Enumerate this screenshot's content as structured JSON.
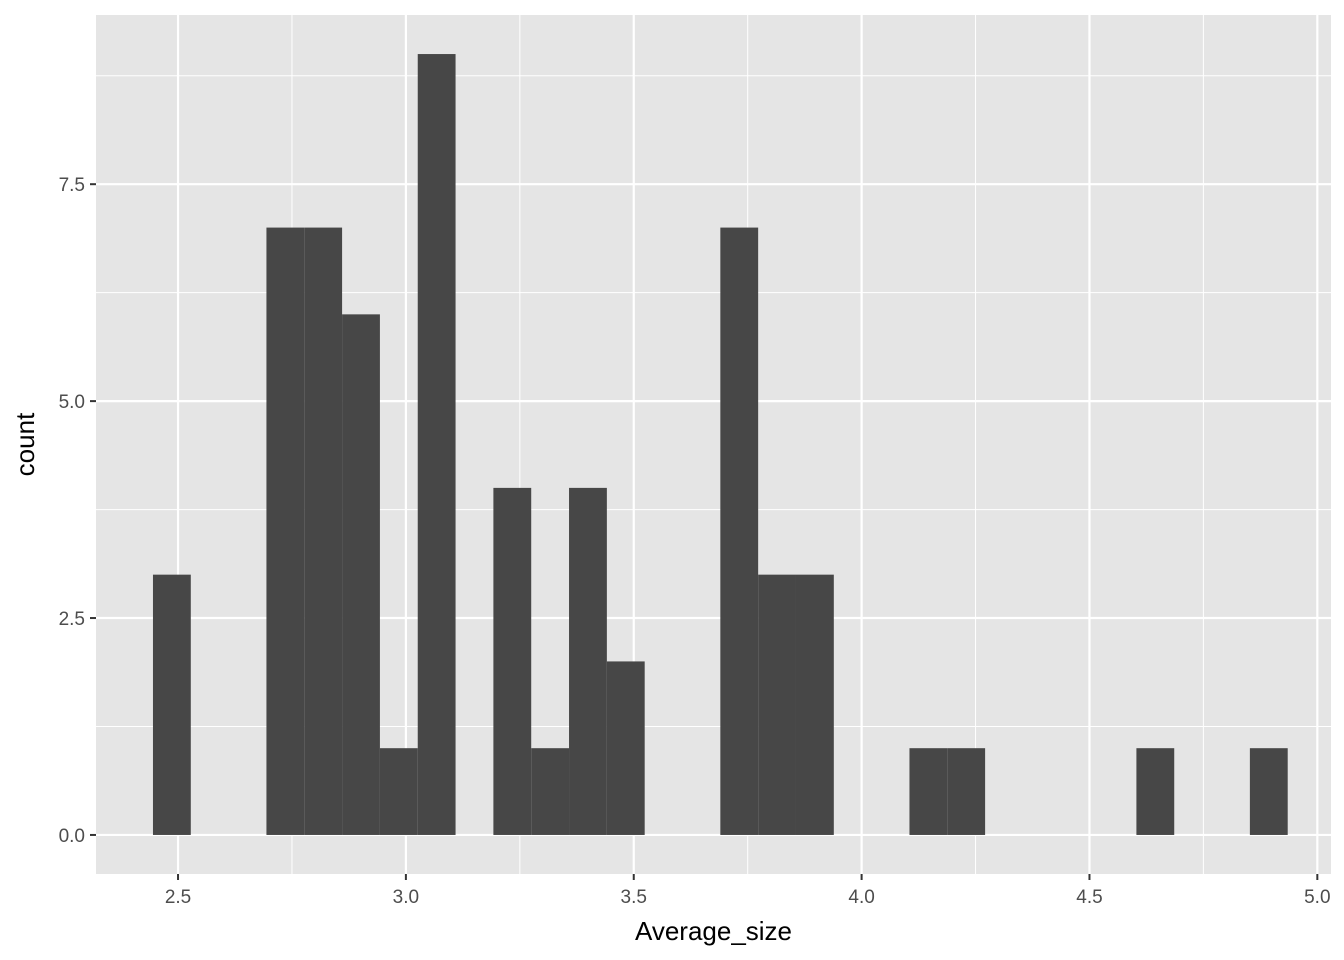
{
  "chart_data": {
    "type": "bar",
    "subtype": "histogram",
    "title": "",
    "xlabel": "Average_size",
    "ylabel": "count",
    "xlim": [
      2.32,
      5.03
    ],
    "ylim": [
      -0.45,
      9.45
    ],
    "x_ticks": [
      2.5,
      3.0,
      3.5,
      4.0,
      4.5,
      5.0
    ],
    "x_tick_labels": [
      "2.5",
      "3.0",
      "3.5",
      "4.0",
      "4.5",
      "5.0"
    ],
    "y_ticks": [
      0,
      2.5,
      5,
      7.5
    ],
    "y_tick_labels": [
      "0.0",
      "2.5",
      "5.0",
      "7.5"
    ],
    "grid": true,
    "bin_width": 0.083,
    "bins": [
      {
        "x0": 2.445,
        "x1": 2.528,
        "count": 3
      },
      {
        "x0": 2.528,
        "x1": 2.611,
        "count": 0
      },
      {
        "x0": 2.611,
        "x1": 2.694,
        "count": 0
      },
      {
        "x0": 2.694,
        "x1": 2.777,
        "count": 7
      },
      {
        "x0": 2.777,
        "x1": 2.86,
        "count": 7
      },
      {
        "x0": 2.86,
        "x1": 2.943,
        "count": 6
      },
      {
        "x0": 2.943,
        "x1": 3.026,
        "count": 1
      },
      {
        "x0": 3.026,
        "x1": 3.109,
        "count": 9
      },
      {
        "x0": 3.109,
        "x1": 3.192,
        "count": 0
      },
      {
        "x0": 3.192,
        "x1": 3.275,
        "count": 4
      },
      {
        "x0": 3.275,
        "x1": 3.358,
        "count": 1
      },
      {
        "x0": 3.358,
        "x1": 3.441,
        "count": 4
      },
      {
        "x0": 3.441,
        "x1": 3.524,
        "count": 2
      },
      {
        "x0": 3.524,
        "x1": 3.607,
        "count": 0
      },
      {
        "x0": 3.607,
        "x1": 3.69,
        "count": 0
      },
      {
        "x0": 3.69,
        "x1": 3.773,
        "count": 7
      },
      {
        "x0": 3.773,
        "x1": 3.856,
        "count": 3
      },
      {
        "x0": 3.856,
        "x1": 3.939,
        "count": 3
      },
      {
        "x0": 3.939,
        "x1": 4.022,
        "count": 0
      },
      {
        "x0": 4.022,
        "x1": 4.105,
        "count": 0
      },
      {
        "x0": 4.105,
        "x1": 4.188,
        "count": 1
      },
      {
        "x0": 4.188,
        "x1": 4.271,
        "count": 1
      },
      {
        "x0": 4.271,
        "x1": 4.354,
        "count": 0
      },
      {
        "x0": 4.354,
        "x1": 4.437,
        "count": 0
      },
      {
        "x0": 4.437,
        "x1": 4.52,
        "count": 0
      },
      {
        "x0": 4.52,
        "x1": 4.603,
        "count": 0
      },
      {
        "x0": 4.603,
        "x1": 4.686,
        "count": 1
      },
      {
        "x0": 4.686,
        "x1": 4.769,
        "count": 0
      },
      {
        "x0": 4.769,
        "x1": 4.852,
        "count": 0
      },
      {
        "x0": 4.852,
        "x1": 4.935,
        "count": 1
      }
    ],
    "colors": {
      "panel_background": "#e5e5e5",
      "grid_major": "#ffffff",
      "bar_fill": "#474747",
      "tick_mark": "#333333"
    }
  }
}
